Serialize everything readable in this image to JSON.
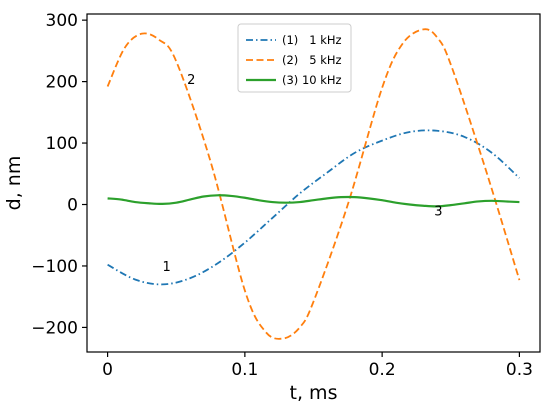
{
  "chart_data": {
    "type": "line",
    "title": "",
    "xlabel": "t, ms",
    "ylabel": "d, nm",
    "xlim": [
      -0.015,
      0.315
    ],
    "ylim": [
      -240,
      310
    ],
    "x_ticks": [
      0,
      0.1,
      0.2,
      0.3
    ],
    "x_tick_labels": [
      "0",
      "0.1",
      "0.2",
      "0.3"
    ],
    "y_ticks": [
      -200,
      -100,
      0,
      100,
      200,
      300
    ],
    "y_tick_labels": [
      "−200",
      "−100",
      "0",
      "100",
      "200",
      "300"
    ],
    "grid": false,
    "legend_position": "top-center",
    "series": [
      {
        "name": "(1)   1 kHz",
        "color": "#1f77b4",
        "style": "dashdot",
        "x": [
          0,
          0.02,
          0.04,
          0.06,
          0.08,
          0.1,
          0.12,
          0.14,
          0.16,
          0.18,
          0.2,
          0.22,
          0.24,
          0.26,
          0.28,
          0.3
        ],
        "y": [
          -98,
          -122,
          -130,
          -120,
          -96,
          -62,
          -22,
          18,
          52,
          84,
          104,
          118,
          120,
          110,
          84,
          43
        ]
      },
      {
        "name": "(2)   5 kHz",
        "color": "#ff7f0e",
        "style": "dashed",
        "x": [
          0,
          0.0125,
          0.025,
          0.0375,
          0.05,
          0.075,
          0.1,
          0.115,
          0.128,
          0.14,
          0.15,
          0.175,
          0.2,
          0.215,
          0.23,
          0.24,
          0.25,
          0.275,
          0.3
        ],
        "y": [
          192,
          255,
          278,
          268,
          233,
          70,
          -140,
          -207,
          -218,
          -200,
          -158,
          0,
          190,
          262,
          285,
          272,
          228,
          60,
          -123
        ]
      },
      {
        "name": "(3) 10 kHz",
        "color": "#2ca02c",
        "style": "solid",
        "x": [
          0,
          0.01,
          0.02,
          0.03,
          0.04,
          0.05,
          0.06,
          0.07,
          0.08,
          0.09,
          0.1,
          0.11,
          0.12,
          0.13,
          0.14,
          0.15,
          0.16,
          0.17,
          0.18,
          0.19,
          0.2,
          0.21,
          0.22,
          0.23,
          0.24,
          0.25,
          0.26,
          0.27,
          0.28,
          0.29,
          0.3
        ],
        "y": [
          10,
          8,
          4,
          2,
          1,
          3,
          8,
          13,
          15,
          14,
          11,
          7,
          4,
          3,
          4,
          7,
          10,
          12,
          12,
          10,
          7,
          3,
          0,
          -2,
          -3,
          -1,
          2,
          5,
          6,
          5,
          4
        ]
      }
    ],
    "annotations": [
      {
        "text": "1",
        "x": 0.043,
        "y": -108
      },
      {
        "text": "2",
        "x": 0.061,
        "y": 196
      },
      {
        "text": "3",
        "x": 0.241,
        "y": -18
      }
    ]
  }
}
